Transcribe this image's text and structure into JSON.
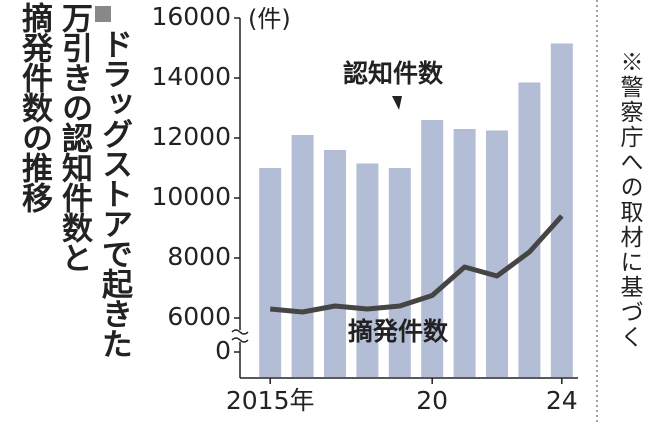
{
  "chart_data": {
    "type": "bar_line",
    "title_lines": [
      "ドラッグストアで起きた",
      "万引きの認知件数と",
      "摘発件数の推移"
    ],
    "unit_label": "(件)",
    "note": "※警察庁への取材に基づく",
    "categories": [
      "2015年",
      null,
      null,
      null,
      null,
      "20",
      null,
      null,
      null,
      "24"
    ],
    "series": [
      {
        "name": "認知件数",
        "type": "bar",
        "color": "#b3bed6",
        "values": [
          11000,
          12100,
          11600,
          11150,
          11000,
          12600,
          12300,
          12250,
          13850,
          15150
        ]
      },
      {
        "name": "摘発件数",
        "type": "line",
        "color": "#454545",
        "values": [
          6300,
          6200,
          6400,
          6300,
          6400,
          6750,
          7700,
          7400,
          8200,
          9400
        ]
      }
    ],
    "ylim": [
      0,
      16000
    ],
    "ybreak": [
      0,
      6000
    ],
    "yticks": [
      0,
      6000,
      8000,
      10000,
      12000,
      14000,
      16000
    ],
    "grid": false
  }
}
